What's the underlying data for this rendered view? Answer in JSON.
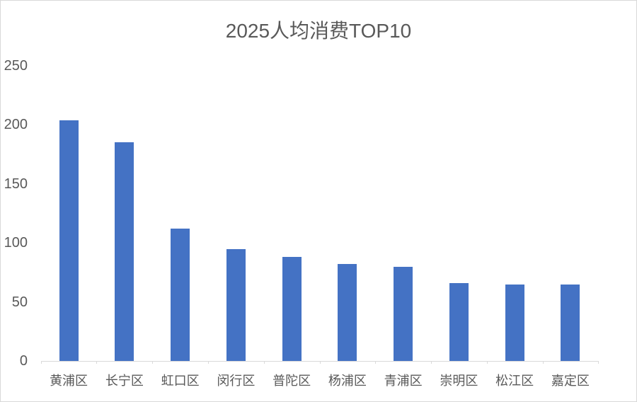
{
  "window": {
    "background": "#ffffff",
    "frame_border_color": "#d9d9d9"
  },
  "chart_data": {
    "type": "bar",
    "title": "2025人均消费TOP10",
    "categories": [
      "黄浦区",
      "长宁区",
      "虹口区",
      "闵行区",
      "普陀区",
      "杨浦区",
      "青浦区",
      "崇明区",
      "松江区",
      "嘉定区"
    ],
    "values": [
      204,
      185,
      112,
      95,
      88,
      82,
      80,
      66,
      65,
      65
    ],
    "xlabel": "",
    "ylabel": "",
    "y_ticks": [
      0,
      50,
      100,
      150,
      200,
      250
    ],
    "ylim": [
      0,
      250
    ],
    "grid": false,
    "legend": false,
    "bar_color": "#4472C4",
    "axis_line_color": "#d9d9d9",
    "text_color": "#595959",
    "title_color": "#595959"
  }
}
